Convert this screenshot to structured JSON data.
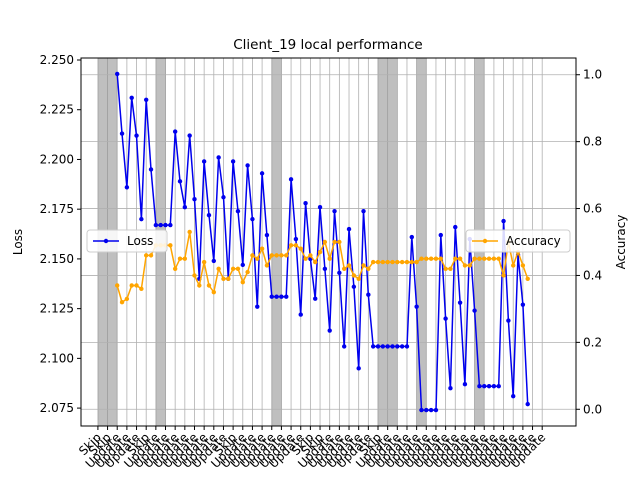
{
  "chart_data": {
    "type": "line",
    "title": "Client_19 local performance",
    "ylabel_left": "Loss",
    "ylabel_right": "Accuracy",
    "grid": true,
    "x": [
      0,
      1,
      2,
      3,
      4,
      5,
      6,
      7,
      8,
      9,
      10,
      11,
      12,
      13,
      14,
      15,
      16,
      17,
      18,
      19,
      20,
      21,
      22,
      23,
      24,
      25,
      26,
      27,
      28,
      29,
      30,
      31,
      32,
      33,
      34,
      35,
      36,
      37,
      38,
      39,
      40,
      41,
      42,
      43,
      44,
      45,
      46,
      47,
      48,
      49,
      50,
      51,
      52,
      53,
      54,
      55,
      56,
      57,
      58,
      59,
      60,
      61,
      62,
      63,
      64,
      65,
      66,
      67,
      68,
      69,
      70,
      71,
      72,
      73,
      74,
      75,
      76,
      77,
      78,
      79,
      80,
      81,
      82,
      83,
      84,
      85,
      86,
      87,
      88,
      89,
      90,
      91,
      92,
      93,
      94,
      95,
      96,
      97,
      98,
      99
    ],
    "xlim": [
      -1.5,
      101
    ],
    "ylim_left": [
      2.066,
      2.251
    ],
    "ylim_right": [
      -0.05,
      1.05
    ],
    "yticks_left": [
      2.075,
      2.1,
      2.125,
      2.15,
      2.175,
      2.2,
      2.225,
      2.25
    ],
    "ytick_labels_left": [
      "2.075",
      "2.100",
      "2.125",
      "2.150",
      "2.175",
      "2.200",
      "2.225",
      "2.250"
    ],
    "yticks_right": [
      0.0,
      0.2,
      0.4,
      0.6,
      0.8,
      1.0
    ],
    "ytick_labels_right": [
      "0.0",
      "0.2",
      "0.4",
      "0.6",
      "0.8",
      "1.0"
    ],
    "xtick_positions": [
      2,
      4,
      6,
      8,
      10,
      12,
      14,
      16,
      18,
      20,
      22,
      24,
      26,
      28,
      30,
      32,
      34,
      36,
      38,
      40,
      42,
      44,
      46,
      48,
      50,
      52,
      54,
      56,
      58,
      60,
      62,
      64,
      66,
      68,
      70,
      72,
      74,
      76,
      78,
      80,
      82,
      84,
      86,
      88,
      90,
      92,
      94
    ],
    "xtick_labels": [
      "Skip",
      "Skip",
      "Update",
      "Update",
      "Update",
      "Skip",
      "Update",
      "Update",
      "Update",
      "Update",
      "Update",
      "Update",
      "Update",
      "Update",
      "Skip",
      "Update",
      "Update",
      "Update",
      "Update",
      "Update",
      "Update",
      "Update",
      "Skip",
      "Skip",
      "Update",
      "Update",
      "Update",
      "Update",
      "Update",
      "Skip",
      "Update",
      "Update",
      "Update",
      "Update",
      "Update",
      "Update",
      "Update",
      "Update",
      "Update",
      "Update",
      "Update",
      "Update",
      "Update",
      "Update",
      "Update",
      "Update",
      "Update"
    ],
    "shaded_spans": [
      [
        2,
        4
      ],
      [
        4,
        6
      ],
      [
        14,
        16
      ],
      [
        38,
        40
      ],
      [
        60,
        62
      ],
      [
        62,
        64
      ],
      [
        68,
        70
      ],
      [
        80,
        82
      ]
    ],
    "series": [
      {
        "name": "Loss",
        "axis": "left",
        "color": "#0000ee",
        "legend_position": "center-left",
        "values": [
          null,
          null,
          null,
          null,
          null,
          null,
          2.243,
          2.213,
          2.186,
          2.231,
          2.212,
          2.17,
          2.23,
          2.195,
          2.167,
          2.167,
          2.167,
          2.167,
          2.214,
          2.189,
          2.176,
          2.212,
          2.18,
          2.14,
          2.199,
          2.172,
          2.149,
          2.201,
          2.181,
          2.14,
          2.199,
          2.174,
          2.147,
          2.197,
          2.17,
          2.126,
          2.193,
          2.162,
          2.131,
          2.131,
          2.131,
          2.131,
          2.19,
          2.16,
          2.122,
          2.178,
          2.15,
          2.13,
          2.176,
          2.145,
          2.114,
          2.174,
          2.143,
          2.106,
          2.165,
          2.136,
          2.095,
          2.174,
          2.132,
          2.106,
          2.106,
          2.106,
          2.106,
          2.106,
          2.106,
          2.106,
          2.106,
          2.161,
          2.126,
          2.074,
          2.074,
          2.074,
          2.074,
          2.162,
          2.12,
          2.085,
          2.166,
          2.128,
          2.087,
          2.16,
          2.124,
          2.086,
          2.086,
          2.086,
          2.086,
          2.086,
          2.169,
          2.119,
          2.081,
          2.152,
          2.127,
          2.077,
          null,
          null,
          null,
          null,
          null,
          null,
          null,
          null
        ]
      },
      {
        "name": "Accuracy",
        "axis": "right",
        "color": "#ffa500",
        "legend_position": "center-right",
        "values": [
          null,
          null,
          null,
          null,
          null,
          null,
          0.37,
          0.32,
          0.33,
          0.37,
          0.37,
          0.36,
          0.46,
          0.46,
          0.49,
          0.49,
          0.49,
          0.49,
          0.42,
          0.45,
          0.45,
          0.53,
          0.4,
          0.37,
          0.44,
          0.37,
          0.35,
          0.42,
          0.39,
          0.39,
          0.42,
          0.42,
          0.38,
          0.41,
          0.46,
          0.45,
          0.48,
          0.43,
          0.46,
          0.46,
          0.46,
          0.46,
          0.49,
          0.49,
          0.48,
          0.45,
          0.46,
          0.44,
          0.47,
          0.5,
          0.45,
          0.5,
          0.5,
          0.42,
          0.43,
          0.4,
          0.39,
          0.43,
          0.42,
          0.44,
          0.44,
          0.44,
          0.44,
          0.44,
          0.44,
          0.44,
          0.44,
          0.44,
          0.44,
          0.45,
          0.45,
          0.45,
          0.45,
          0.45,
          0.42,
          0.42,
          0.45,
          0.45,
          0.43,
          0.43,
          0.45,
          0.45,
          0.45,
          0.45,
          0.45,
          0.45,
          0.4,
          0.5,
          0.43,
          0.47,
          0.43,
          0.39,
          null,
          null,
          null,
          null,
          null,
          null,
          null,
          null
        ]
      }
    ]
  }
}
